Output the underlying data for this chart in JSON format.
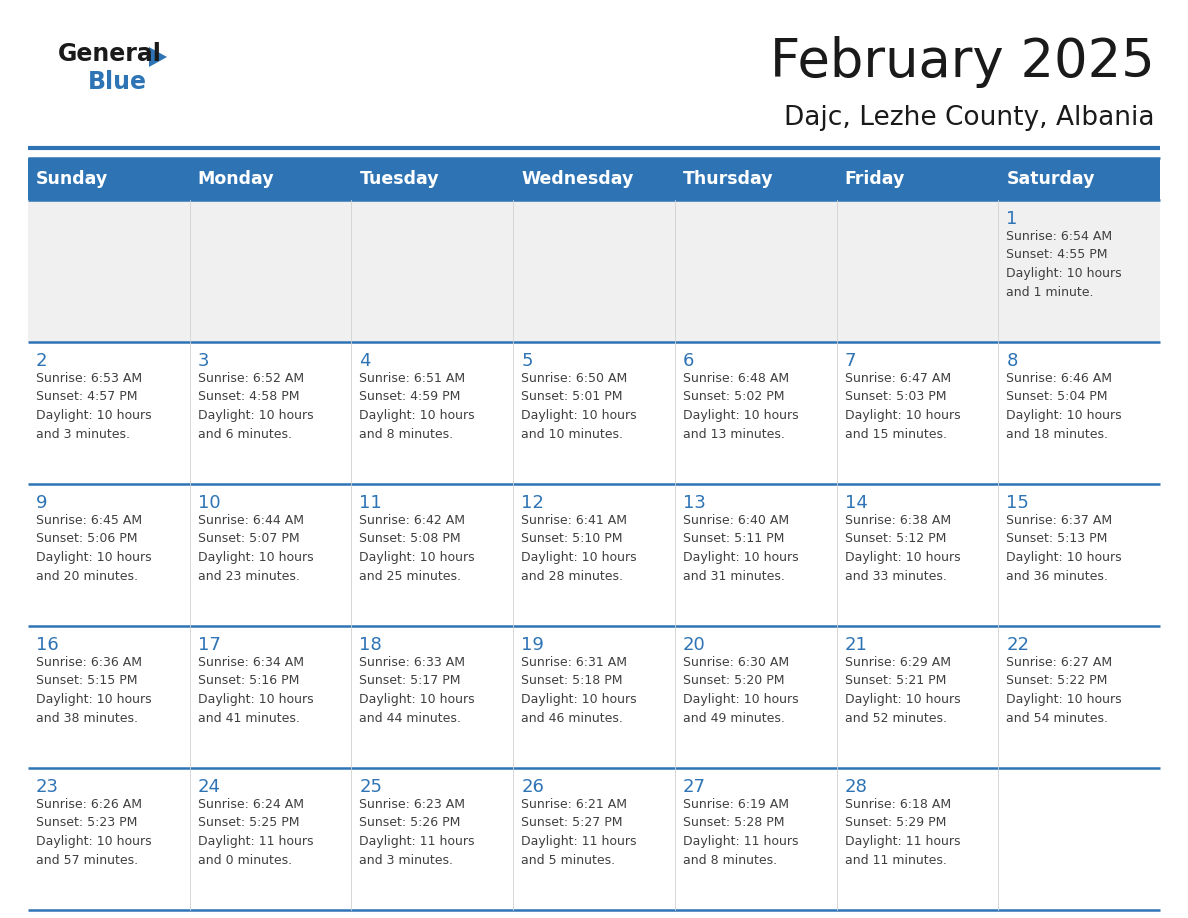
{
  "title": "February 2025",
  "subtitle": "Dajc, Lezhe County, Albania",
  "days_of_week": [
    "Sunday",
    "Monday",
    "Tuesday",
    "Wednesday",
    "Thursday",
    "Friday",
    "Saturday"
  ],
  "header_bg": "#2E74B5",
  "header_text": "#FFFFFF",
  "cell_bg_light": "#FFFFFF",
  "cell_bg_dark": "#F0F0F0",
  "border_color": "#2E74B5",
  "day_number_color": "#2E74B5",
  "text_color": "#404040",
  "weeks": [
    {
      "days": [
        {
          "day": null,
          "info": null
        },
        {
          "day": null,
          "info": null
        },
        {
          "day": null,
          "info": null
        },
        {
          "day": null,
          "info": null
        },
        {
          "day": null,
          "info": null
        },
        {
          "day": null,
          "info": null
        },
        {
          "day": 1,
          "info": "Sunrise: 6:54 AM\nSunset: 4:55 PM\nDaylight: 10 hours\nand 1 minute."
        }
      ]
    },
    {
      "days": [
        {
          "day": 2,
          "info": "Sunrise: 6:53 AM\nSunset: 4:57 PM\nDaylight: 10 hours\nand 3 minutes."
        },
        {
          "day": 3,
          "info": "Sunrise: 6:52 AM\nSunset: 4:58 PM\nDaylight: 10 hours\nand 6 minutes."
        },
        {
          "day": 4,
          "info": "Sunrise: 6:51 AM\nSunset: 4:59 PM\nDaylight: 10 hours\nand 8 minutes."
        },
        {
          "day": 5,
          "info": "Sunrise: 6:50 AM\nSunset: 5:01 PM\nDaylight: 10 hours\nand 10 minutes."
        },
        {
          "day": 6,
          "info": "Sunrise: 6:48 AM\nSunset: 5:02 PM\nDaylight: 10 hours\nand 13 minutes."
        },
        {
          "day": 7,
          "info": "Sunrise: 6:47 AM\nSunset: 5:03 PM\nDaylight: 10 hours\nand 15 minutes."
        },
        {
          "day": 8,
          "info": "Sunrise: 6:46 AM\nSunset: 5:04 PM\nDaylight: 10 hours\nand 18 minutes."
        }
      ]
    },
    {
      "days": [
        {
          "day": 9,
          "info": "Sunrise: 6:45 AM\nSunset: 5:06 PM\nDaylight: 10 hours\nand 20 minutes."
        },
        {
          "day": 10,
          "info": "Sunrise: 6:44 AM\nSunset: 5:07 PM\nDaylight: 10 hours\nand 23 minutes."
        },
        {
          "day": 11,
          "info": "Sunrise: 6:42 AM\nSunset: 5:08 PM\nDaylight: 10 hours\nand 25 minutes."
        },
        {
          "day": 12,
          "info": "Sunrise: 6:41 AM\nSunset: 5:10 PM\nDaylight: 10 hours\nand 28 minutes."
        },
        {
          "day": 13,
          "info": "Sunrise: 6:40 AM\nSunset: 5:11 PM\nDaylight: 10 hours\nand 31 minutes."
        },
        {
          "day": 14,
          "info": "Sunrise: 6:38 AM\nSunset: 5:12 PM\nDaylight: 10 hours\nand 33 minutes."
        },
        {
          "day": 15,
          "info": "Sunrise: 6:37 AM\nSunset: 5:13 PM\nDaylight: 10 hours\nand 36 minutes."
        }
      ]
    },
    {
      "days": [
        {
          "day": 16,
          "info": "Sunrise: 6:36 AM\nSunset: 5:15 PM\nDaylight: 10 hours\nand 38 minutes."
        },
        {
          "day": 17,
          "info": "Sunrise: 6:34 AM\nSunset: 5:16 PM\nDaylight: 10 hours\nand 41 minutes."
        },
        {
          "day": 18,
          "info": "Sunrise: 6:33 AM\nSunset: 5:17 PM\nDaylight: 10 hours\nand 44 minutes."
        },
        {
          "day": 19,
          "info": "Sunrise: 6:31 AM\nSunset: 5:18 PM\nDaylight: 10 hours\nand 46 minutes."
        },
        {
          "day": 20,
          "info": "Sunrise: 6:30 AM\nSunset: 5:20 PM\nDaylight: 10 hours\nand 49 minutes."
        },
        {
          "day": 21,
          "info": "Sunrise: 6:29 AM\nSunset: 5:21 PM\nDaylight: 10 hours\nand 52 minutes."
        },
        {
          "day": 22,
          "info": "Sunrise: 6:27 AM\nSunset: 5:22 PM\nDaylight: 10 hours\nand 54 minutes."
        }
      ]
    },
    {
      "days": [
        {
          "day": 23,
          "info": "Sunrise: 6:26 AM\nSunset: 5:23 PM\nDaylight: 10 hours\nand 57 minutes."
        },
        {
          "day": 24,
          "info": "Sunrise: 6:24 AM\nSunset: 5:25 PM\nDaylight: 11 hours\nand 0 minutes."
        },
        {
          "day": 25,
          "info": "Sunrise: 6:23 AM\nSunset: 5:26 PM\nDaylight: 11 hours\nand 3 minutes."
        },
        {
          "day": 26,
          "info": "Sunrise: 6:21 AM\nSunset: 5:27 PM\nDaylight: 11 hours\nand 5 minutes."
        },
        {
          "day": 27,
          "info": "Sunrise: 6:19 AM\nSunset: 5:28 PM\nDaylight: 11 hours\nand 8 minutes."
        },
        {
          "day": 28,
          "info": "Sunrise: 6:18 AM\nSunset: 5:29 PM\nDaylight: 11 hours\nand 11 minutes."
        },
        {
          "day": null,
          "info": null
        }
      ]
    }
  ]
}
